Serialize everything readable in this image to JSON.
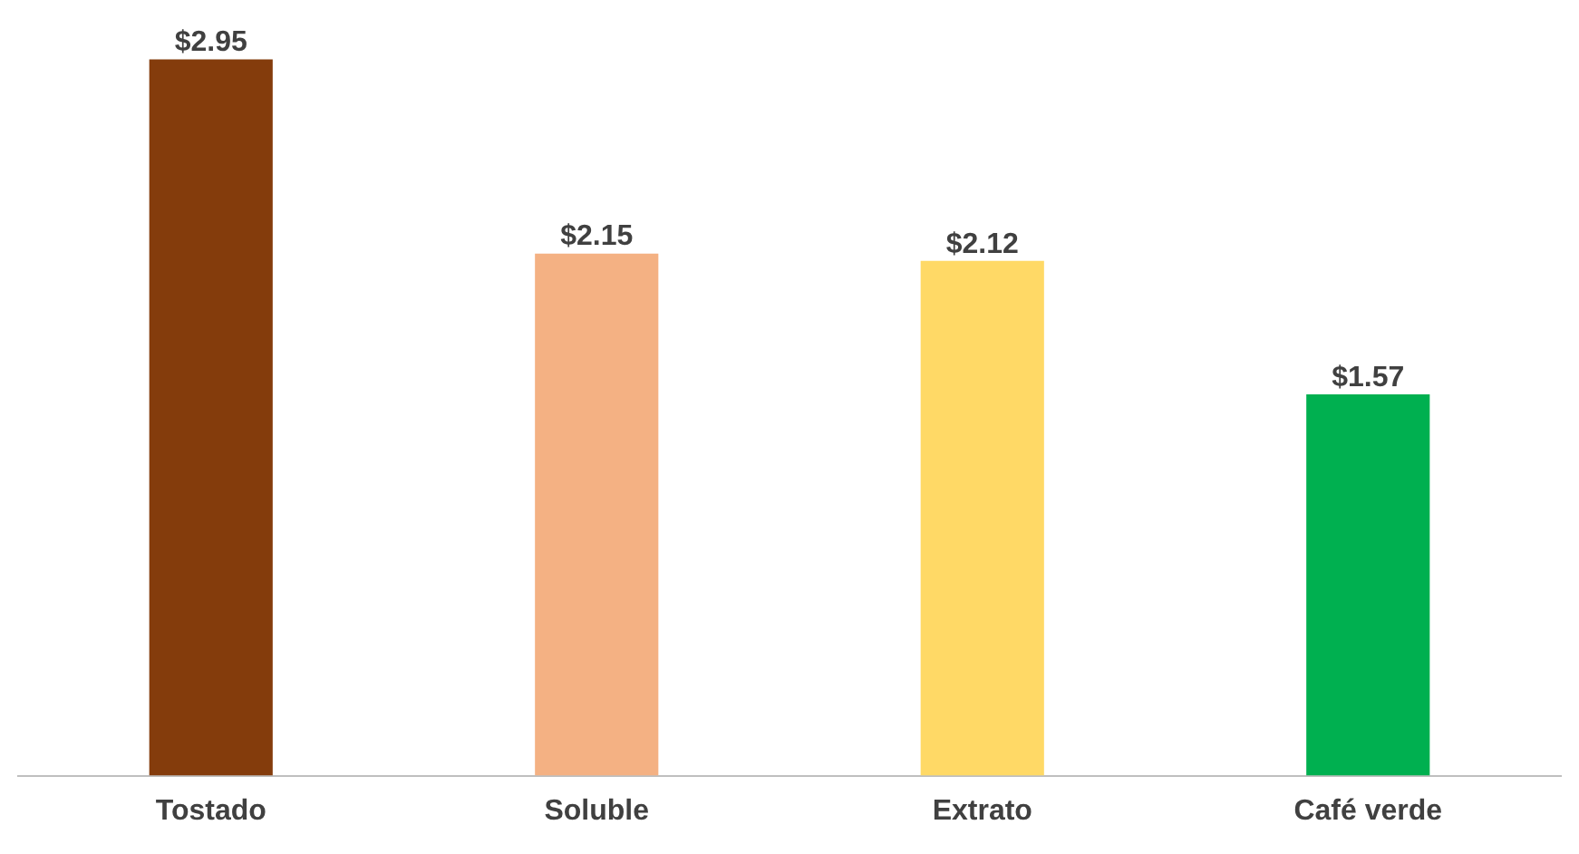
{
  "chart_data": {
    "type": "bar",
    "categories": [
      "Tostado",
      "Soluble",
      "Extrato",
      "Café verde"
    ],
    "values": [
      2.95,
      2.15,
      2.12,
      1.57
    ],
    "colors": [
      "#843c0c",
      "#f4b183",
      "#ffd966",
      "#00b050"
    ],
    "value_labels": [
      "$2.95",
      "$2.15",
      "$2.12",
      "$1.57"
    ],
    "grid": false,
    "legend": false
  }
}
